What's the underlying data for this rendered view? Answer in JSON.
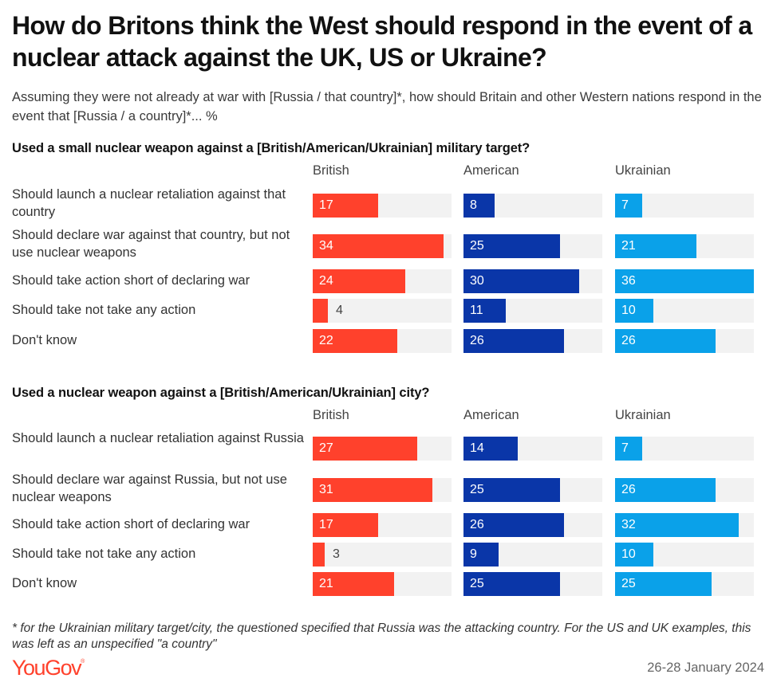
{
  "title": "How do Britons think the West should respond in the event of a nuclear attack against the UK, US or Ukraine?",
  "subtitle": "Assuming they were not already at war with [Russia / that country]*, how should Britain and other Western nations respond in the event that [Russia / a country]*... %",
  "footnote": "* for the Ukrainian military target/city, the questioned specified that Russia was the attacking country. For the US and UK examples, this was left as an unspecified \"a country\"",
  "brand": {
    "name": "YouGov",
    "mark": "®"
  },
  "date": "26-28 January 2024",
  "colors": {
    "British": "#ff412c",
    "American": "#0a36a8",
    "Ukrainian": "#0aa1e9",
    "track": "#f2f2f2"
  },
  "chart_data": [
    {
      "type": "bar",
      "orientation": "horizontal",
      "title": "Used a small nuclear weapon against a [British/American/Ukrainian] military target?",
      "xlim": [
        0,
        36
      ],
      "unit": "%",
      "categories": [
        "Should launch a nuclear retaliation against that country",
        "Should declare war against that country, but not use nuclear weapons",
        "Should take action short of declaring war",
        "Should take not take any action",
        "Don't know"
      ],
      "series": [
        {
          "name": "British",
          "values": [
            17,
            34,
            24,
            4,
            22
          ]
        },
        {
          "name": "American",
          "values": [
            8,
            25,
            30,
            11,
            26
          ]
        },
        {
          "name": "Ukrainian",
          "values": [
            7,
            21,
            36,
            10,
            26
          ]
        }
      ]
    },
    {
      "type": "bar",
      "orientation": "horizontal",
      "title": "Used a nuclear weapon against a [British/American/Ukrainian] city?",
      "xlim": [
        0,
        36
      ],
      "unit": "%",
      "categories": [
        "Should launch a nuclear retaliation against Russia",
        "Should declare war against Russia, but not use nuclear weapons",
        "Should take action short of declaring war",
        "Should take not take any action",
        "Don't know"
      ],
      "series": [
        {
          "name": "British",
          "values": [
            27,
            31,
            17,
            3,
            21
          ]
        },
        {
          "name": "American",
          "values": [
            14,
            25,
            26,
            9,
            25
          ]
        },
        {
          "name": "Ukrainian",
          "values": [
            7,
            26,
            32,
            10,
            25
          ]
        }
      ]
    }
  ]
}
